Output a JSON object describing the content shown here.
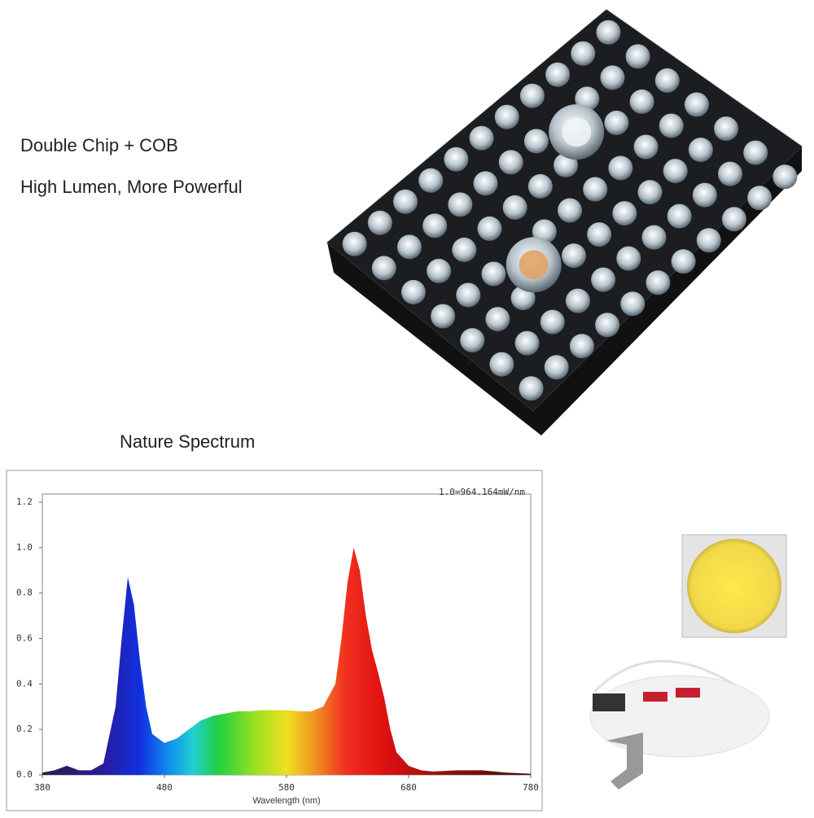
{
  "header": {
    "line1": "Double Chip + COB",
    "line2": "High Lumen, More Powerful",
    "section": "Nature Spectrum"
  },
  "chart_data": {
    "type": "area",
    "annotation": "1.0=964.164mW/nm",
    "x_label": "Wavelength (nm)",
    "x": [
      380,
      390,
      400,
      410,
      420,
      430,
      440,
      445,
      450,
      455,
      460,
      465,
      470,
      480,
      490,
      500,
      510,
      520,
      530,
      540,
      550,
      560,
      570,
      580,
      590,
      600,
      610,
      620,
      625,
      630,
      635,
      640,
      645,
      650,
      655,
      660,
      665,
      670,
      680,
      690,
      700,
      720,
      740,
      760,
      780
    ],
    "values": [
      0.01,
      0.02,
      0.04,
      0.02,
      0.02,
      0.05,
      0.3,
      0.6,
      0.87,
      0.75,
      0.5,
      0.3,
      0.18,
      0.14,
      0.16,
      0.2,
      0.24,
      0.26,
      0.27,
      0.28,
      0.28,
      0.285,
      0.285,
      0.285,
      0.28,
      0.28,
      0.3,
      0.4,
      0.6,
      0.85,
      1.0,
      0.9,
      0.7,
      0.55,
      0.45,
      0.34,
      0.2,
      0.1,
      0.04,
      0.02,
      0.015,
      0.02,
      0.02,
      0.01,
      0.005
    ],
    "xlim": [
      380,
      780
    ],
    "xticks": [
      380,
      480,
      580,
      680,
      780
    ],
    "ylim": [
      0,
      1.2
    ],
    "yticks": [
      {
        "value": 0,
        "label": "0.0"
      },
      0.2,
      0.4,
      0.6,
      0.8,
      {
        "value": 1,
        "label": "1.0"
      },
      1.2
    ]
  }
}
